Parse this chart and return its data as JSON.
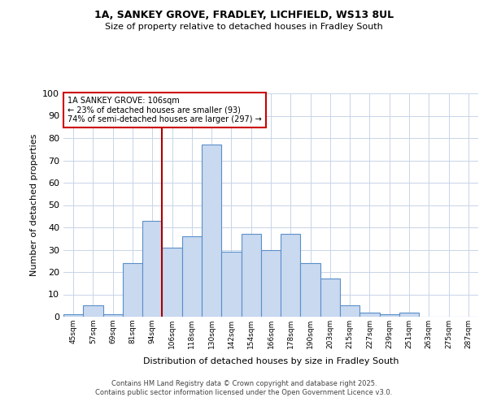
{
  "title_line1": "1A, SANKEY GROVE, FRADLEY, LICHFIELD, WS13 8UL",
  "title_line2": "Size of property relative to detached houses in Fradley South",
  "xlabel": "Distribution of detached houses by size in Fradley South",
  "ylabel": "Number of detached properties",
  "bar_labels": [
    "45sqm",
    "57sqm",
    "69sqm",
    "81sqm",
    "94sqm",
    "106sqm",
    "118sqm",
    "130sqm",
    "142sqm",
    "154sqm",
    "166sqm",
    "178sqm",
    "190sqm",
    "203sqm",
    "215sqm",
    "227sqm",
    "239sqm",
    "251sqm",
    "263sqm",
    "275sqm",
    "287sqm"
  ],
  "bar_values": [
    1,
    5,
    1,
    24,
    43,
    31,
    36,
    77,
    29,
    37,
    30,
    37,
    24,
    17,
    5,
    2,
    1,
    2,
    0,
    0,
    0
  ],
  "bar_color": "#c9d9f0",
  "bar_edge_color": "#5b8fc9",
  "vline_x": 4.5,
  "vline_color": "#aa0000",
  "annotation_text": "1A SANKEY GROVE: 106sqm\n← 23% of detached houses are smaller (93)\n74% of semi-detached houses are larger (297) →",
  "annotation_box_color": "#cc0000",
  "footer_line1": "Contains HM Land Registry data © Crown copyright and database right 2025.",
  "footer_line2": "Contains public sector information licensed under the Open Government Licence v3.0.",
  "ylim": [
    0,
    100
  ],
  "yticks": [
    0,
    10,
    20,
    30,
    40,
    50,
    60,
    70,
    80,
    90,
    100
  ],
  "background_color": "#ffffff",
  "grid_color": "#c8d4e8"
}
